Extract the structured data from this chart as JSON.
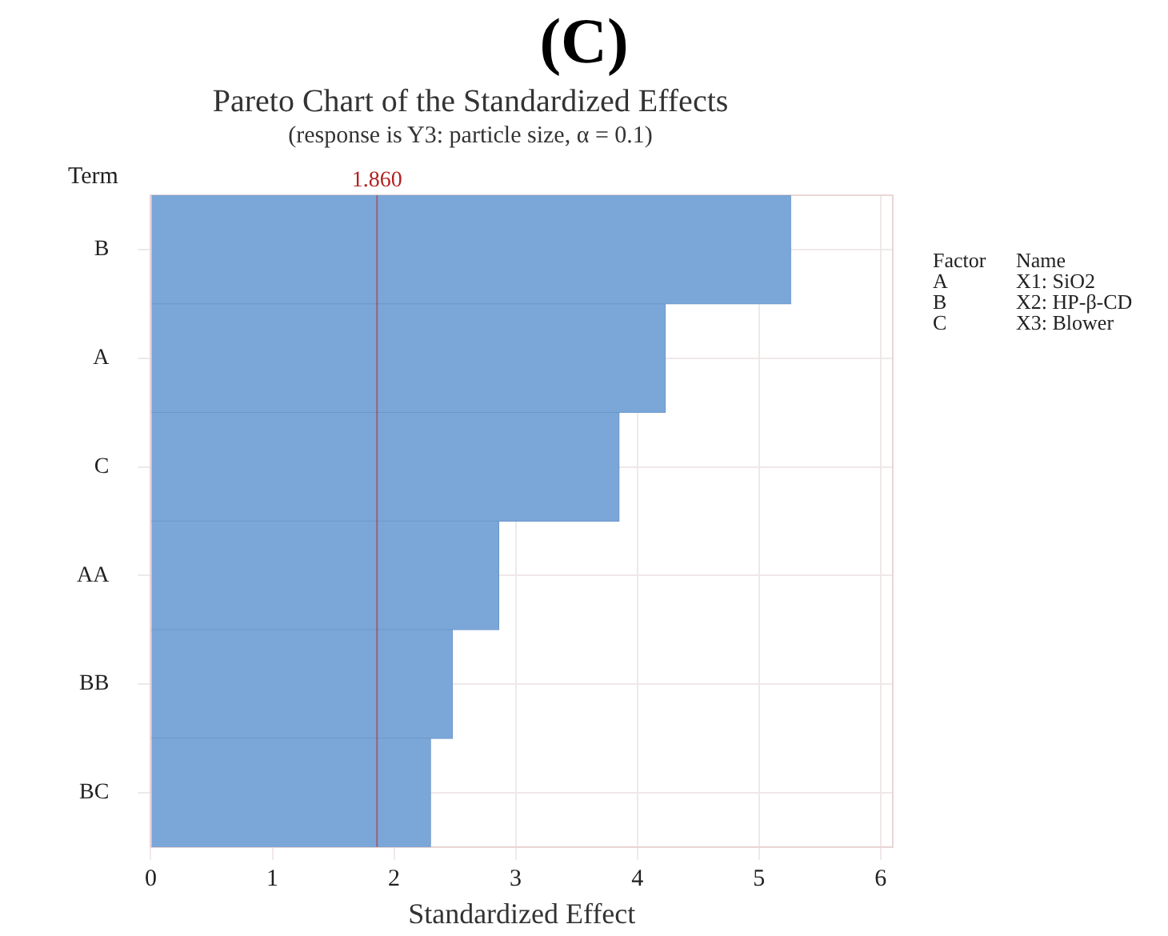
{
  "chart_data": {
    "type": "bar",
    "orientation": "horizontal",
    "title": "Pareto Chart of the Standardized Effects",
    "subtitle": "(response is Y3: particle size, α = 0.1)",
    "xlabel": "Standardized Effect",
    "ylabel": "Term",
    "categories": [
      "B",
      "A",
      "C",
      "AA",
      "BB",
      "BC"
    ],
    "values": [
      5.26,
      4.23,
      3.85,
      2.86,
      2.48,
      2.3
    ],
    "color": "#7ba6d8",
    "xlim": [
      0,
      6.1
    ],
    "xticks": [
      0,
      1,
      2,
      3,
      4,
      5,
      6
    ],
    "grid": true,
    "ref_lines": [
      {
        "axis": "x",
        "value": 1.86,
        "label": "1.860",
        "color": "#b22222"
      }
    ],
    "annotations": [
      "(C)",
      "Factor",
      "Name",
      "A",
      "X1: SiO2",
      "B",
      "X2: HP-β-CD",
      "C",
      "X3: Blower"
    ]
  }
}
